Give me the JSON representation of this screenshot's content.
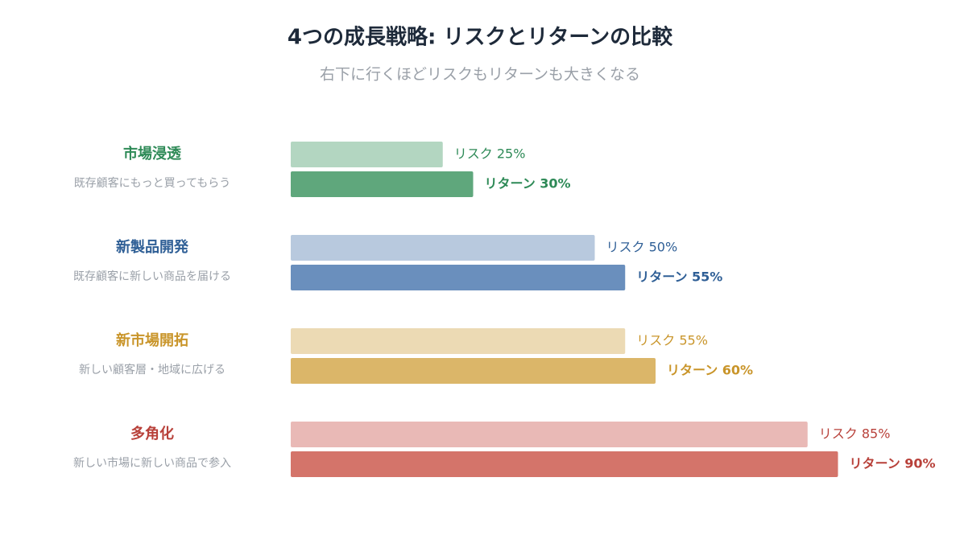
{
  "chart_data": {
    "type": "bar",
    "title": "4つの成長戦略: リスクとリターンの比較",
    "subtitle": "右下に行くほどリスクもリターンも大きくなる",
    "categories": [
      "市場浸透",
      "新製品開発",
      "新市場開拓",
      "多角化"
    ],
    "descriptions": [
      "既存顧客にもっと買ってもらう",
      "既存顧客に新しい商品を届ける",
      "新しい顧客層・地域に広げる",
      "新しい市場に新しい商品で参入"
    ],
    "category_colors": [
      "#2e8a57",
      "#2f5f96",
      "#c9952a",
      "#b8413a"
    ],
    "xlim": [
      0,
      100
    ],
    "series": [
      {
        "values": [
          25,
          50,
          55,
          85
        ],
        "value_labels": [
          "リスク 25%",
          "リスク 50%",
          "リスク 55%",
          "リスク 85%"
        ],
        "colors": [
          "#b3d6c1",
          "#b8c9de",
          "#ecdab4",
          "#e9b9b6"
        ]
      },
      {
        "values": [
          30,
          55,
          60,
          90
        ],
        "value_labels": [
          "リターン 30%",
          "リターン 55%",
          "リターン 60%",
          "リターン 90%"
        ],
        "colors": [
          "#5fa77c",
          "#6a8fbd",
          "#dbb669",
          "#d4746a"
        ]
      }
    ]
  }
}
